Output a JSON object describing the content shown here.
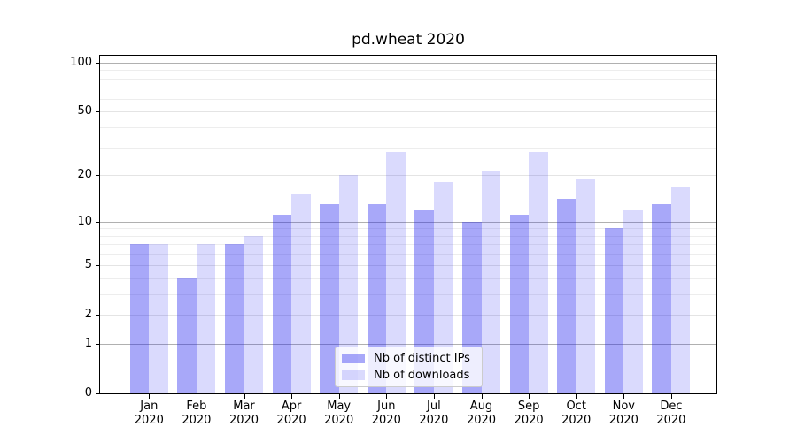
{
  "title": "pd.wheat 2020",
  "chart_data": {
    "type": "bar",
    "title": "pd.wheat 2020",
    "categories": [
      "Jan 2020",
      "Feb 2020",
      "Mar 2020",
      "Apr 2020",
      "May 2020",
      "Jun 2020",
      "Jul 2020",
      "Aug 2020",
      "Sep 2020",
      "Oct 2020",
      "Nov 2020",
      "Dec 2020"
    ],
    "series": [
      {
        "name": "Nb of distinct IPs",
        "color": "#a8a8f5",
        "fill": "rgba(25,25,240,0.38)",
        "values": [
          7,
          4,
          7,
          11,
          13,
          13,
          12,
          10,
          11,
          14,
          9,
          13
        ]
      },
      {
        "name": "Nb of downloads",
        "color": "#dadaf9",
        "fill": "rgba(25,25,240,0.16)",
        "values": [
          7,
          7,
          8,
          15,
          20,
          28,
          18,
          21,
          28,
          19,
          12,
          17
        ]
      }
    ],
    "xlabel": "",
    "ylabel": "",
    "yscale": "log1p",
    "ylim": [
      0,
      110
    ],
    "y_ticks": [
      0,
      1,
      2,
      5,
      10,
      20,
      50,
      100
    ],
    "y_major_gridlines": [
      1,
      10,
      100
    ],
    "y_minor_gridlines": [
      3,
      4,
      6,
      7,
      8,
      9,
      30,
      40,
      60,
      70,
      80,
      90
    ],
    "grid": true,
    "legend": {
      "position": "lower center",
      "entries": [
        "Nb of distinct IPs",
        "Nb of downloads"
      ]
    }
  },
  "colors": {
    "background": "#ffffff",
    "spine": "#000000",
    "grid_major": "#b0b0b0",
    "grid_light": "#e4e4e4",
    "grid_minor": "#ededed",
    "legend_border": "#cccccc",
    "text": "#000000"
  }
}
